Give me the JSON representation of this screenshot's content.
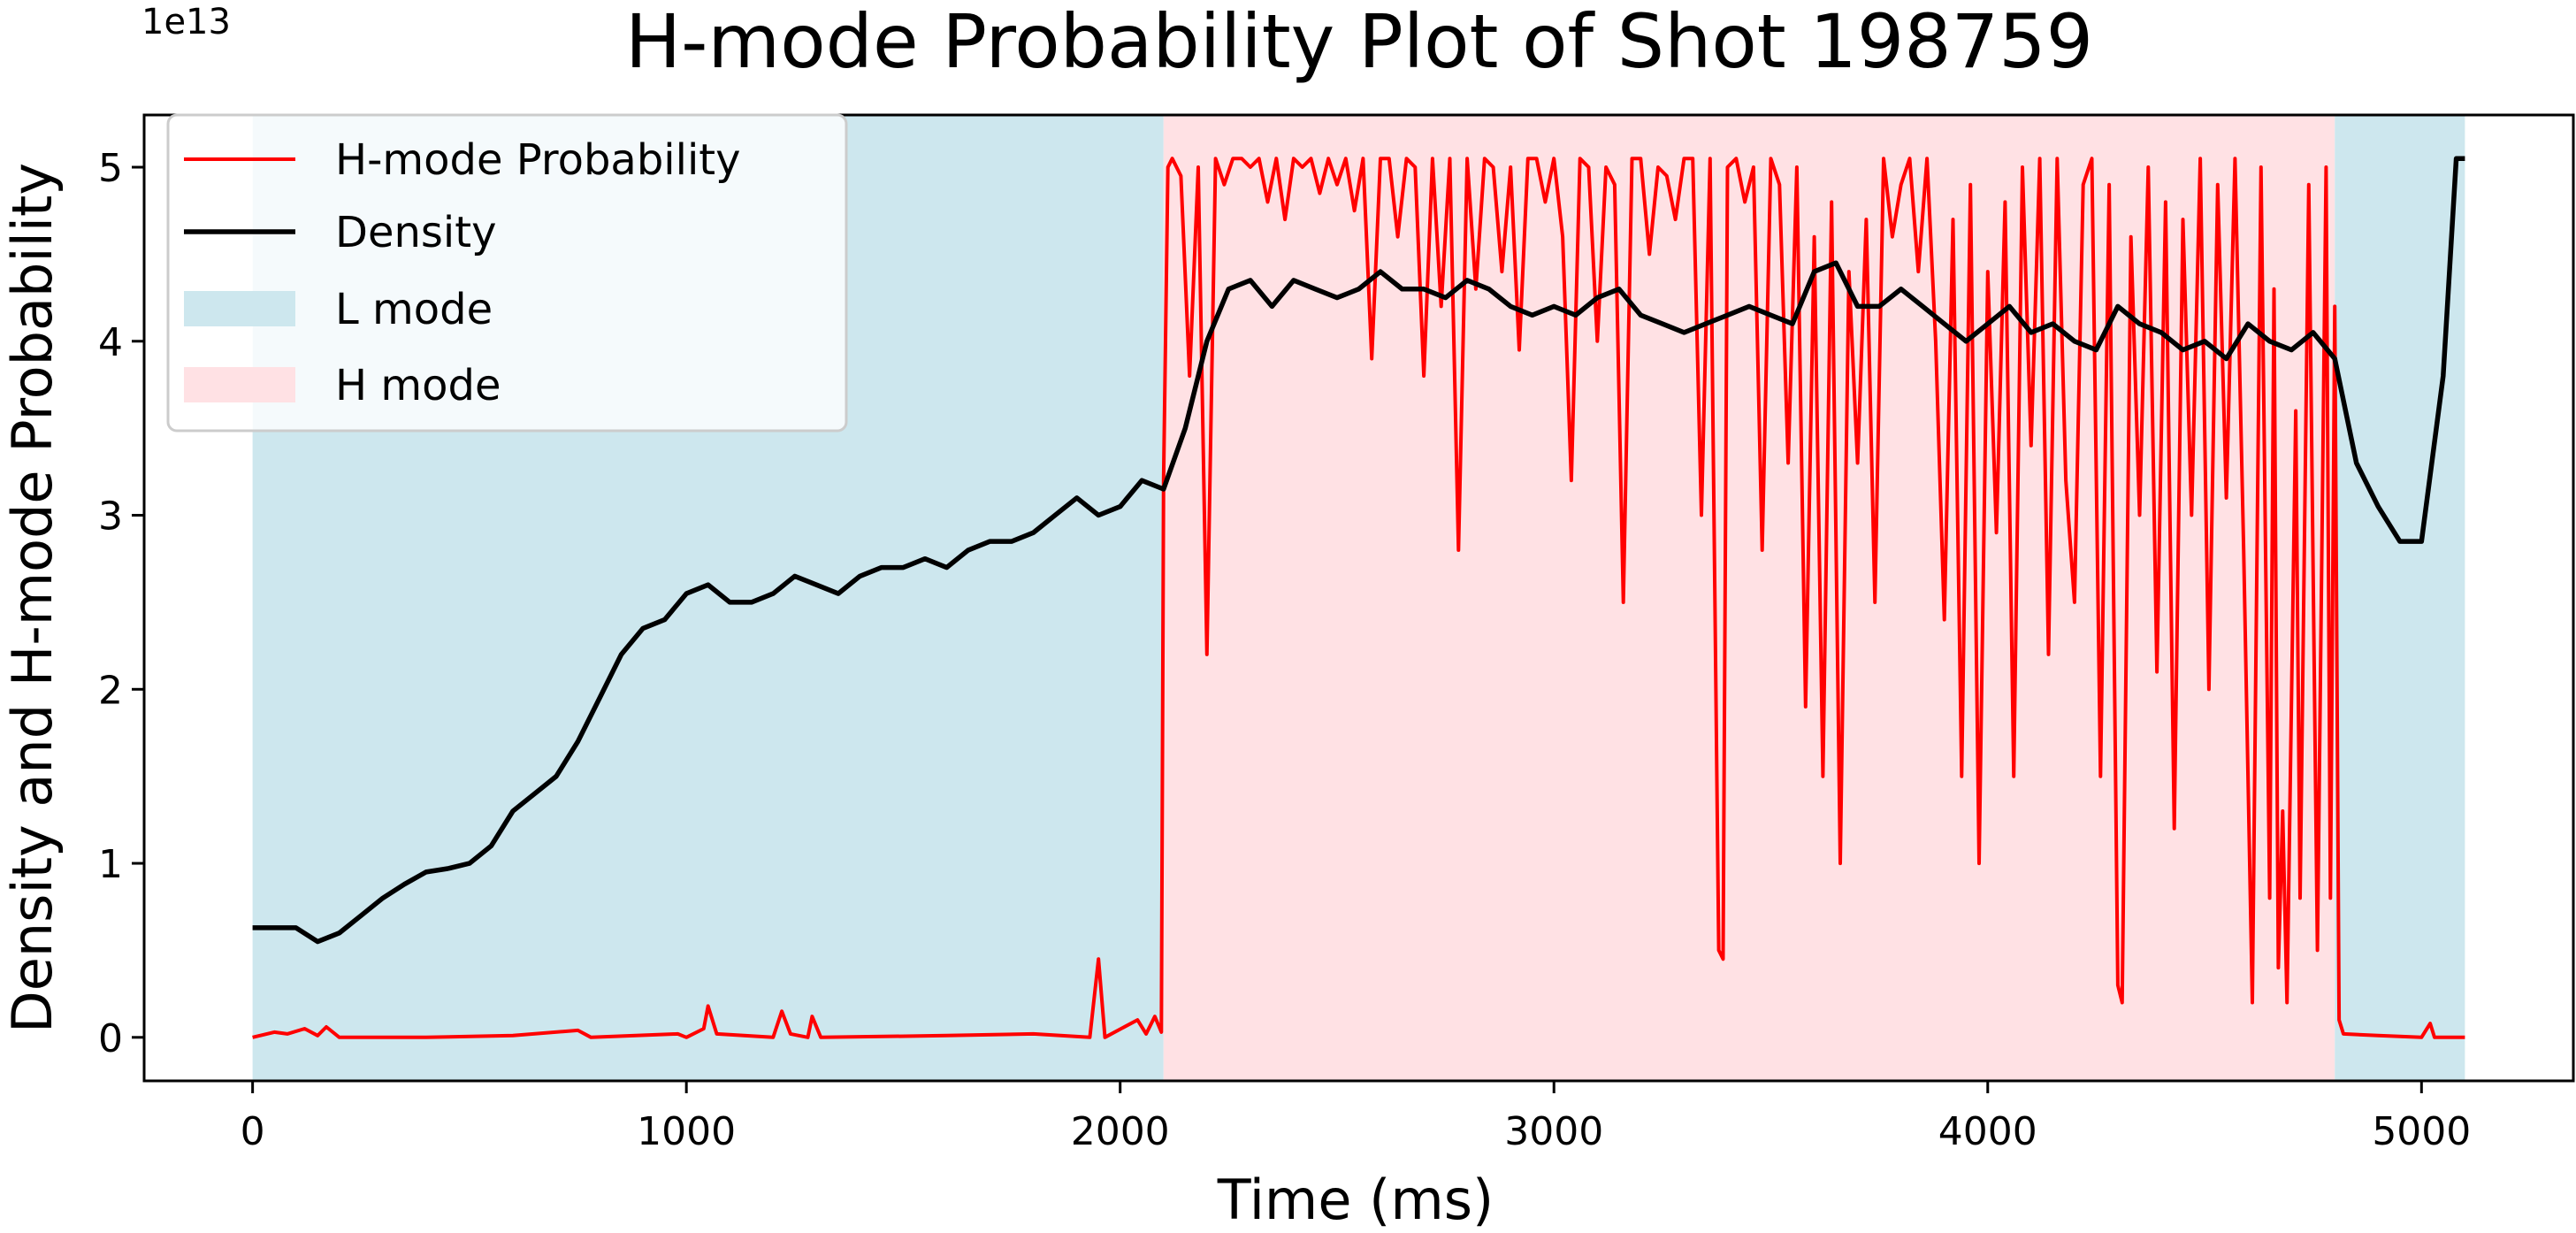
{
  "chart_data": {
    "type": "line",
    "title": "H-mode Probability Plot of Shot 198759",
    "xlabel": "Time (ms)",
    "ylabel": "Density and H-mode Probability",
    "y_offset_label": "1e13",
    "xlim": [
      -250,
      5350
    ],
    "ylim": [
      -0.25,
      5.3
    ],
    "x_ticks": [
      0,
      1000,
      2000,
      3000,
      4000,
      5000
    ],
    "x_tick_labels": [
      "0",
      "1000",
      "2000",
      "3000",
      "4000",
      "5000"
    ],
    "y_ticks": [
      0,
      1,
      2,
      3,
      4,
      5
    ],
    "y_tick_labels": [
      "0",
      "1",
      "2",
      "3",
      "4",
      "5"
    ],
    "y_units": "1e13",
    "grid": false,
    "legend_position": "top-left",
    "legend": [
      {
        "label": "H-mode Probability",
        "kind": "line",
        "color": "#ff0000"
      },
      {
        "label": "Density",
        "kind": "line",
        "color": "#000000"
      },
      {
        "label": "L mode",
        "kind": "patch",
        "color": "#cde7ee"
      },
      {
        "label": "H mode",
        "kind": "patch",
        "color": "#ffe1e4"
      }
    ],
    "regions": [
      {
        "mode": "L mode",
        "start": 0,
        "end": 2100
      },
      {
        "mode": "H mode",
        "start": 2100,
        "end": 4800
      },
      {
        "mode": "L mode",
        "start": 4800,
        "end": 5100
      }
    ],
    "series": [
      {
        "name": "H-mode Probability",
        "color": "#ff0000",
        "points": [
          [
            0,
            0.0
          ],
          [
            50,
            0.03
          ],
          [
            80,
            0.02
          ],
          [
            120,
            0.05
          ],
          [
            150,
            0.01
          ],
          [
            170,
            0.06
          ],
          [
            200,
            0.0
          ],
          [
            400,
            0.0
          ],
          [
            600,
            0.01
          ],
          [
            750,
            0.04
          ],
          [
            780,
            0.0
          ],
          [
            980,
            0.02
          ],
          [
            1000,
            0.0
          ],
          [
            1040,
            0.05
          ],
          [
            1050,
            0.18
          ],
          [
            1070,
            0.02
          ],
          [
            1200,
            0.0
          ],
          [
            1220,
            0.15
          ],
          [
            1240,
            0.02
          ],
          [
            1280,
            0.0
          ],
          [
            1290,
            0.12
          ],
          [
            1310,
            0.0
          ],
          [
            1600,
            0.01
          ],
          [
            1800,
            0.02
          ],
          [
            1930,
            0.0
          ],
          [
            1950,
            0.45
          ],
          [
            1965,
            0.0
          ],
          [
            2040,
            0.1
          ],
          [
            2060,
            0.02
          ],
          [
            2080,
            0.12
          ],
          [
            2095,
            0.03
          ],
          [
            2100,
            3.2
          ],
          [
            2110,
            5.0
          ],
          [
            2120,
            5.05
          ],
          [
            2140,
            4.95
          ],
          [
            2160,
            3.8
          ],
          [
            2180,
            5.0
          ],
          [
            2200,
            2.2
          ],
          [
            2220,
            5.05
          ],
          [
            2240,
            4.9
          ],
          [
            2260,
            5.05
          ],
          [
            2280,
            5.05
          ],
          [
            2300,
            5.0
          ],
          [
            2320,
            5.05
          ],
          [
            2340,
            4.8
          ],
          [
            2360,
            5.05
          ],
          [
            2380,
            4.7
          ],
          [
            2400,
            5.05
          ],
          [
            2420,
            5.0
          ],
          [
            2440,
            5.05
          ],
          [
            2460,
            4.85
          ],
          [
            2480,
            5.05
          ],
          [
            2500,
            4.9
          ],
          [
            2520,
            5.05
          ],
          [
            2540,
            4.75
          ],
          [
            2560,
            5.05
          ],
          [
            2580,
            3.9
          ],
          [
            2600,
            5.05
          ],
          [
            2620,
            5.05
          ],
          [
            2640,
            4.6
          ],
          [
            2660,
            5.05
          ],
          [
            2680,
            5.0
          ],
          [
            2700,
            3.8
          ],
          [
            2720,
            5.05
          ],
          [
            2740,
            4.2
          ],
          [
            2760,
            5.05
          ],
          [
            2780,
            2.8
          ],
          [
            2800,
            5.05
          ],
          [
            2820,
            4.3
          ],
          [
            2840,
            5.05
          ],
          [
            2860,
            5.0
          ],
          [
            2880,
            4.4
          ],
          [
            2900,
            5.0
          ],
          [
            2920,
            3.95
          ],
          [
            2940,
            5.05
          ],
          [
            2960,
            5.05
          ],
          [
            2980,
            4.8
          ],
          [
            3000,
            5.05
          ],
          [
            3020,
            4.6
          ],
          [
            3040,
            3.2
          ],
          [
            3060,
            5.05
          ],
          [
            3080,
            5.0
          ],
          [
            3100,
            4.0
          ],
          [
            3120,
            5.0
          ],
          [
            3140,
            4.9
          ],
          [
            3160,
            2.5
          ],
          [
            3180,
            5.05
          ],
          [
            3200,
            5.05
          ],
          [
            3220,
            4.5
          ],
          [
            3240,
            5.0
          ],
          [
            3260,
            4.95
          ],
          [
            3280,
            4.7
          ],
          [
            3300,
            5.05
          ],
          [
            3320,
            5.05
          ],
          [
            3340,
            3.0
          ],
          [
            3360,
            5.05
          ],
          [
            3380,
            0.5
          ],
          [
            3390,
            0.45
          ],
          [
            3400,
            5.0
          ],
          [
            3420,
            5.05
          ],
          [
            3440,
            4.8
          ],
          [
            3460,
            5.0
          ],
          [
            3480,
            2.8
          ],
          [
            3500,
            5.05
          ],
          [
            3520,
            4.9
          ],
          [
            3540,
            3.3
          ],
          [
            3560,
            5.0
          ],
          [
            3580,
            1.9
          ],
          [
            3600,
            4.6
          ],
          [
            3620,
            1.5
          ],
          [
            3640,
            4.8
          ],
          [
            3660,
            1.0
          ],
          [
            3680,
            4.4
          ],
          [
            3700,
            3.3
          ],
          [
            3720,
            4.7
          ],
          [
            3740,
            2.5
          ],
          [
            3760,
            5.05
          ],
          [
            3780,
            4.6
          ],
          [
            3800,
            4.9
          ],
          [
            3820,
            5.05
          ],
          [
            3840,
            4.4
          ],
          [
            3860,
            5.05
          ],
          [
            3880,
            4.0
          ],
          [
            3900,
            2.4
          ],
          [
            3920,
            4.7
          ],
          [
            3940,
            1.5
          ],
          [
            3960,
            4.9
          ],
          [
            3980,
            1.0
          ],
          [
            4000,
            4.4
          ],
          [
            4020,
            2.9
          ],
          [
            4040,
            4.8
          ],
          [
            4060,
            1.5
          ],
          [
            4080,
            5.0
          ],
          [
            4100,
            3.4
          ],
          [
            4120,
            5.05
          ],
          [
            4140,
            2.2
          ],
          [
            4160,
            5.05
          ],
          [
            4180,
            3.2
          ],
          [
            4200,
            2.5
          ],
          [
            4220,
            4.9
          ],
          [
            4240,
            5.05
          ],
          [
            4260,
            1.5
          ],
          [
            4280,
            4.9
          ],
          [
            4300,
            0.3
          ],
          [
            4310,
            0.2
          ],
          [
            4330,
            4.6
          ],
          [
            4350,
            3.0
          ],
          [
            4370,
            5.0
          ],
          [
            4390,
            2.1
          ],
          [
            4410,
            4.8
          ],
          [
            4430,
            1.2
          ],
          [
            4450,
            4.7
          ],
          [
            4470,
            3.0
          ],
          [
            4490,
            5.05
          ],
          [
            4510,
            2.0
          ],
          [
            4530,
            4.9
          ],
          [
            4550,
            3.1
          ],
          [
            4570,
            5.05
          ],
          [
            4590,
            2.8
          ],
          [
            4610,
            0.2
          ],
          [
            4630,
            5.0
          ],
          [
            4650,
            0.8
          ],
          [
            4660,
            4.3
          ],
          [
            4670,
            0.4
          ],
          [
            4680,
            1.3
          ],
          [
            4690,
            0.2
          ],
          [
            4710,
            3.6
          ],
          [
            4720,
            0.8
          ],
          [
            4740,
            4.9
          ],
          [
            4760,
            0.5
          ],
          [
            4780,
            5.0
          ],
          [
            4790,
            0.8
          ],
          [
            4800,
            4.2
          ],
          [
            4810,
            0.1
          ],
          [
            4820,
            0.02
          ],
          [
            4900,
            0.01
          ],
          [
            5000,
            0.0
          ],
          [
            5020,
            0.08
          ],
          [
            5030,
            0.0
          ],
          [
            5100,
            0.0
          ]
        ]
      },
      {
        "name": "Density",
        "color": "#000000",
        "points": [
          [
            0,
            0.63
          ],
          [
            50,
            0.63
          ],
          [
            100,
            0.63
          ],
          [
            150,
            0.55
          ],
          [
            200,
            0.6
          ],
          [
            250,
            0.7
          ],
          [
            300,
            0.8
          ],
          [
            350,
            0.88
          ],
          [
            400,
            0.95
          ],
          [
            450,
            0.97
          ],
          [
            500,
            1.0
          ],
          [
            550,
            1.1
          ],
          [
            600,
            1.3
          ],
          [
            650,
            1.4
          ],
          [
            700,
            1.5
          ],
          [
            750,
            1.7
          ],
          [
            800,
            1.95
          ],
          [
            850,
            2.2
          ],
          [
            900,
            2.35
          ],
          [
            950,
            2.4
          ],
          [
            1000,
            2.55
          ],
          [
            1050,
            2.6
          ],
          [
            1100,
            2.5
          ],
          [
            1150,
            2.5
          ],
          [
            1200,
            2.55
          ],
          [
            1250,
            2.65
          ],
          [
            1300,
            2.6
          ],
          [
            1350,
            2.55
          ],
          [
            1400,
            2.65
          ],
          [
            1450,
            2.7
          ],
          [
            1500,
            2.7
          ],
          [
            1550,
            2.75
          ],
          [
            1600,
            2.7
          ],
          [
            1650,
            2.8
          ],
          [
            1700,
            2.85
          ],
          [
            1750,
            2.85
          ],
          [
            1800,
            2.9
          ],
          [
            1850,
            3.0
          ],
          [
            1900,
            3.1
          ],
          [
            1950,
            3.0
          ],
          [
            2000,
            3.05
          ],
          [
            2050,
            3.2
          ],
          [
            2100,
            3.15
          ],
          [
            2150,
            3.5
          ],
          [
            2200,
            4.0
          ],
          [
            2250,
            4.3
          ],
          [
            2300,
            4.35
          ],
          [
            2350,
            4.2
          ],
          [
            2400,
            4.35
          ],
          [
            2450,
            4.3
          ],
          [
            2500,
            4.25
          ],
          [
            2550,
            4.3
          ],
          [
            2600,
            4.4
          ],
          [
            2650,
            4.3
          ],
          [
            2700,
            4.3
          ],
          [
            2750,
            4.25
          ],
          [
            2800,
            4.35
          ],
          [
            2850,
            4.3
          ],
          [
            2900,
            4.2
          ],
          [
            2950,
            4.15
          ],
          [
            3000,
            4.2
          ],
          [
            3050,
            4.15
          ],
          [
            3100,
            4.25
          ],
          [
            3150,
            4.3
          ],
          [
            3200,
            4.15
          ],
          [
            3250,
            4.1
          ],
          [
            3300,
            4.05
          ],
          [
            3350,
            4.1
          ],
          [
            3400,
            4.15
          ],
          [
            3450,
            4.2
          ],
          [
            3500,
            4.15
          ],
          [
            3550,
            4.1
          ],
          [
            3600,
            4.4
          ],
          [
            3650,
            4.45
          ],
          [
            3700,
            4.2
          ],
          [
            3750,
            4.2
          ],
          [
            3800,
            4.3
          ],
          [
            3850,
            4.2
          ],
          [
            3900,
            4.1
          ],
          [
            3950,
            4.0
          ],
          [
            4000,
            4.1
          ],
          [
            4050,
            4.2
          ],
          [
            4100,
            4.05
          ],
          [
            4150,
            4.1
          ],
          [
            4200,
            4.0
          ],
          [
            4250,
            3.95
          ],
          [
            4300,
            4.2
          ],
          [
            4350,
            4.1
          ],
          [
            4400,
            4.05
          ],
          [
            4450,
            3.95
          ],
          [
            4500,
            4.0
          ],
          [
            4550,
            3.9
          ],
          [
            4600,
            4.1
          ],
          [
            4650,
            4.0
          ],
          [
            4700,
            3.95
          ],
          [
            4750,
            4.05
          ],
          [
            4800,
            3.9
          ],
          [
            4850,
            3.3
          ],
          [
            4900,
            3.05
          ],
          [
            4950,
            2.85
          ],
          [
            5000,
            2.85
          ],
          [
            5050,
            3.8
          ],
          [
            5080,
            5.05
          ],
          [
            5100,
            5.05
          ]
        ]
      }
    ]
  }
}
